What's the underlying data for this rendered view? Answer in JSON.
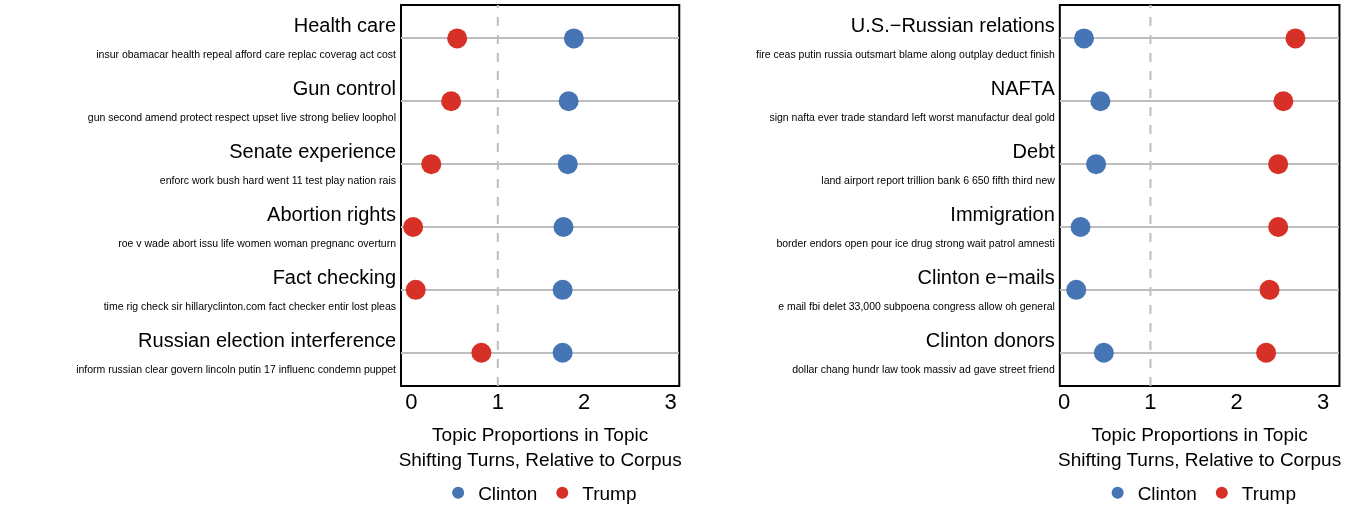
{
  "chart_data": [
    {
      "type": "scatter",
      "orientation": "horizontal",
      "categories": [
        "Health care\ninsur obamacar health repeal afford care replac coverag act cost",
        "Gun control\ngun second amend protect respect upset live strong believ loophol",
        "Senate experience\nenforc work bush hard went 11 test play nation rais",
        "Abortion rights\nroe v wade abort issu life women woman pregnanc overturn",
        "Fact checking\ntime rig check sir hillaryclinton.com fact checker entir lost pleas",
        "Russian election interference\ninform russian clear govern lincoln putin 17 influenc condemn puppet"
      ],
      "series": [
        {
          "name": "Clinton",
          "color": "#4575b4",
          "values": [
            1.88,
            1.82,
            1.81,
            1.76,
            1.75,
            1.75
          ]
        },
        {
          "name": "Trump",
          "color": "#d73027",
          "values": [
            0.53,
            0.46,
            0.23,
            0.02,
            0.05,
            0.81
          ]
        }
      ],
      "xlim": [
        -0.12,
        3.1
      ],
      "xticks": [
        0,
        1,
        2,
        3
      ],
      "xlabel": "Topic Proportions in Topic\nShifting Turns, Relative to Corpus",
      "ref_lines": [
        {
          "axis": "x",
          "value": 1,
          "color": "#bebebe",
          "line_style": "dashed"
        }
      ],
      "grid": "y",
      "legend": "bottom",
      "marker": "circle"
    },
    {
      "type": "scatter",
      "orientation": "horizontal",
      "categories": [
        "U.S.−Russian relations\nfire ceas putin russia outsmart blame along outplay deduct finish",
        "NAFTA\nsign nafta ever trade standard left worst manufactur deal gold",
        "Debt\nland airport report trillion bank 6 650 fifth third new",
        "Immigration\nborder endors open pour ice drug strong wait patrol amnesti",
        "Clinton e−mails\ne mail fbi delet 33,000 subpoena congress allow oh general",
        "Clinton donors\ndollar chang hundr law took massiv ad gave street friend"
      ],
      "series": [
        {
          "name": "Clinton",
          "color": "#4575b4",
          "values": [
            0.23,
            0.42,
            0.37,
            0.19,
            0.14,
            0.46
          ]
        },
        {
          "name": "Trump",
          "color": "#d73027",
          "values": [
            2.68,
            2.54,
            2.48,
            2.48,
            2.38,
            2.34
          ]
        }
      ],
      "xlim": [
        -0.05,
        3.19
      ],
      "xticks": [
        0,
        1,
        2,
        3
      ],
      "xlabel": "Topic Proportions in Topic\nShifting Turns, Relative to Corpus",
      "ref_lines": [
        {
          "axis": "x",
          "value": 1,
          "color": "#bebebe",
          "line_style": "dashed"
        }
      ],
      "grid": "y",
      "legend": "bottom",
      "marker": "circle"
    }
  ]
}
